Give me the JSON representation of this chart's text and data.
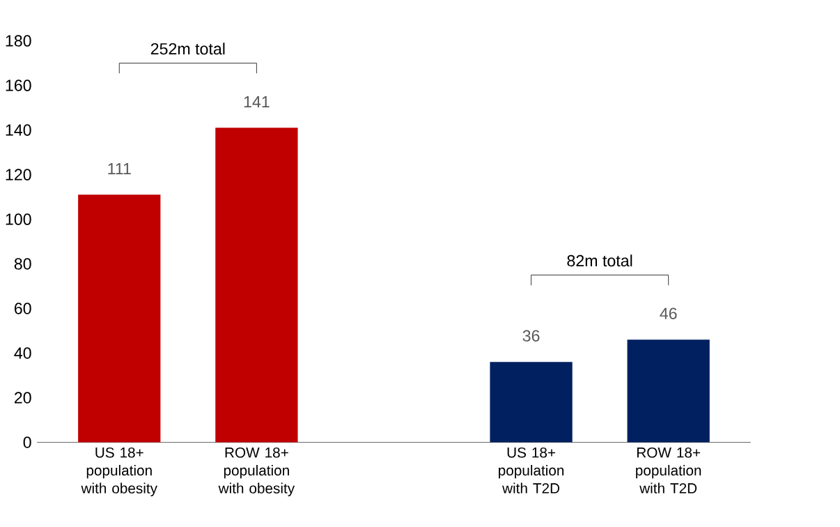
{
  "chart_data": {
    "type": "bar",
    "categories": [
      "US 18+ population with obesity",
      "ROW 18+ population with obesity",
      null,
      "US 18+ population with T2D",
      "ROW 18+ population with T2D"
    ],
    "values": [
      111,
      141,
      null,
      36,
      46
    ],
    "colors": [
      "#c00000",
      "#c00000",
      null,
      "#002060",
      "#002060"
    ],
    "ylim": [
      0,
      180
    ],
    "yticks": [
      0,
      20,
      40,
      60,
      80,
      100,
      120,
      140,
      160,
      180
    ],
    "data_labels": true,
    "annotations": [
      "252m total",
      "82m total"
    ]
  }
}
